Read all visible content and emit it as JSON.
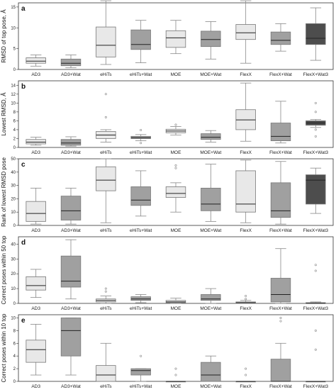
{
  "categories": [
    "AD3",
    "AD3+Wat",
    "eHiTs",
    "eHiTs+Wat",
    "MOE",
    "MOE+Wat",
    "FlexX",
    "FlexX+Wat",
    "FlexX+Wat3"
  ],
  "colors": [
    "#e8e8e8",
    "#a0a0a0",
    "#e8e8e8",
    "#a0a0a0",
    "#e8e8e8",
    "#a0a0a0",
    "#e8e8e8",
    "#a0a0a0",
    "#4d4d4d"
  ],
  "chart_data": [
    {
      "type": "box",
      "panel_label": "a",
      "ylabel": "RMSD of top pose, Å",
      "ylim": [
        0,
        16
      ],
      "yticks": [
        0,
        5,
        10,
        15
      ],
      "categories": [
        "AD3",
        "AD3+Wat",
        "eHiTs",
        "eHiTs+Wat",
        "MOE",
        "MOE+Wat",
        "FlexX",
        "FlexX+Wat",
        "FlexX+Wat3"
      ],
      "boxes": [
        {
          "whisker_low": 0.8,
          "q1": 1.5,
          "median": 2.0,
          "q3": 2.8,
          "whisker_high": 3.5,
          "outliers": []
        },
        {
          "whisker_low": 0.4,
          "q1": 0.9,
          "median": 1.5,
          "q3": 2.5,
          "whisker_high": 3.5,
          "outliers": []
        },
        {
          "whisker_low": 1.2,
          "q1": 3.0,
          "median": 5.8,
          "q3": 10.2,
          "whisker_high": 16.5,
          "outliers": []
        },
        {
          "whisker_low": 1.6,
          "q1": 4.8,
          "median": 6.0,
          "q3": 9.5,
          "whisker_high": 11.8,
          "outliers": []
        },
        {
          "whisker_low": 3.8,
          "q1": 5.3,
          "median": 7.6,
          "q3": 9.3,
          "whisker_high": 11.8,
          "outliers": []
        },
        {
          "whisker_low": 2.5,
          "q1": 5.5,
          "median": 7.2,
          "q3": 9.2,
          "whisker_high": 11.5,
          "outliers": []
        },
        {
          "whisker_low": 1.5,
          "q1": 7.2,
          "median": 8.8,
          "q3": 10.8,
          "whisker_high": 16.5,
          "outliers": []
        },
        {
          "whisker_low": 4.4,
          "q1": 6.0,
          "median": 7.0,
          "q3": 9.0,
          "whisker_high": 11.0,
          "outliers": []
        },
        {
          "whisker_low": 2.2,
          "q1": 6.0,
          "median": 7.5,
          "q3": 11.0,
          "whisker_high": 14.8,
          "outliers": []
        }
      ]
    },
    {
      "type": "box",
      "panel_label": "b",
      "ylabel": "Lowest RMSD, Å",
      "ylim": [
        0,
        15
      ],
      "yticks": [
        0,
        2,
        4,
        6,
        8,
        10,
        12,
        14
      ],
      "categories": [
        "AD3",
        "AD3+Wat",
        "eHiTs",
        "eHiTs+Wat",
        "MOE",
        "MOE+Wat",
        "FlexX",
        "FlexX+Wat",
        "FlexX+Wat3"
      ],
      "boxes": [
        {
          "whisker_low": 0.5,
          "q1": 0.8,
          "median": 1.2,
          "q3": 1.8,
          "whisker_high": 2.3,
          "outliers": []
        },
        {
          "whisker_low": 0.3,
          "q1": 0.5,
          "median": 1.0,
          "q3": 1.8,
          "whisker_high": 2.4,
          "outliers": []
        },
        {
          "whisker_low": 1.2,
          "q1": 2.0,
          "median": 2.8,
          "q3": 3.6,
          "whisker_high": 4.0,
          "outliers": [
            6.8,
            12.0
          ]
        },
        {
          "whisker_low": 1.5,
          "q1": 2.0,
          "median": 2.2,
          "q3": 2.5,
          "whisker_high": 2.9,
          "outliers": [
            1.0,
            3.9
          ]
        },
        {
          "whisker_low": 2.8,
          "q1": 3.3,
          "median": 3.7,
          "q3": 4.1,
          "whisker_high": 4.7,
          "outliers": [
            5.1
          ]
        },
        {
          "whisker_low": 1.2,
          "q1": 1.8,
          "median": 2.3,
          "q3": 3.1,
          "whisker_high": 3.8,
          "outliers": []
        },
        {
          "whisker_low": 1.4,
          "q1": 4.0,
          "median": 6.2,
          "q3": 8.5,
          "whisker_high": 14.5,
          "outliers": []
        },
        {
          "whisker_low": 1.0,
          "q1": 1.5,
          "median": 2.5,
          "q3": 5.5,
          "whisker_high": 10.4,
          "outliers": []
        },
        {
          "whisker_low": 4.5,
          "q1": 5.0,
          "median": 5.5,
          "q3": 6.0,
          "whisker_high": 6.3,
          "outliers": [
            2.5,
            8.0,
            10.0,
            4.0
          ]
        }
      ]
    },
    {
      "type": "box",
      "panel_label": "c",
      "ylabel": "Rank of lowest RMSD pose",
      "ylim": [
        0,
        50
      ],
      "yticks": [
        0,
        10,
        20,
        30,
        40,
        50
      ],
      "categories": [
        "AD3",
        "AD3+Wat",
        "eHiTs",
        "eHiTs+Wat",
        "MOE",
        "MOE+Wat",
        "FlexX",
        "FlexX+Wat",
        "FlexX+Wat3"
      ],
      "boxes": [
        {
          "whisker_low": 1,
          "q1": 3,
          "median": 9,
          "q3": 18,
          "whisker_high": 28,
          "outliers": []
        },
        {
          "whisker_low": 1,
          "q1": 4,
          "median": 11,
          "q3": 22,
          "whisker_high": 28,
          "outliers": []
        },
        {
          "whisker_low": 2,
          "q1": 26,
          "median": 34,
          "q3": 44,
          "whisker_high": 50,
          "outliers": []
        },
        {
          "whisker_low": 7,
          "q1": 15,
          "median": 19,
          "q3": 29,
          "whisker_high": 41,
          "outliers": []
        },
        {
          "whisker_low": 10,
          "q1": 21,
          "median": 24,
          "q3": 29,
          "whisker_high": 32,
          "outliers": [
            43,
            45
          ]
        },
        {
          "whisker_low": 3,
          "q1": 11,
          "median": 16,
          "q3": 28,
          "whisker_high": 46,
          "outliers": []
        },
        {
          "whisker_low": 2,
          "q1": 10,
          "median": 16,
          "q3": 41,
          "whisker_high": 49,
          "outliers": []
        },
        {
          "whisker_low": 1,
          "q1": 6,
          "median": 11,
          "q3": 32,
          "whisker_high": 48,
          "outliers": []
        },
        {
          "whisker_low": 9,
          "q1": 16,
          "median": 34,
          "q3": 38,
          "whisker_high": 43,
          "outliers": []
        }
      ]
    },
    {
      "type": "box",
      "panel_label": "d",
      "ylabel": "Correct poses within 50 top",
      "ylim": [
        0,
        45
      ],
      "yticks": [
        0,
        10,
        20,
        30,
        40
      ],
      "categories": [
        "AD3",
        "AD3+Wat",
        "eHiTs",
        "eHiTs+Wat",
        "MOE",
        "MOE+Wat",
        "FlexX",
        "FlexX+Wat",
        "FlexX+Wat3"
      ],
      "boxes": [
        {
          "whisker_low": 4,
          "q1": 9,
          "median": 12,
          "q3": 18,
          "whisker_high": 23,
          "outliers": []
        },
        {
          "whisker_low": 3,
          "q1": 11,
          "median": 15,
          "q3": 32,
          "whisker_high": 43,
          "outliers": []
        },
        {
          "whisker_low": 0,
          "q1": 1,
          "median": 2,
          "q3": 3,
          "whisker_high": 5,
          "outliers": [
            8,
            10
          ]
        },
        {
          "whisker_low": 0.5,
          "q1": 2,
          "median": 3,
          "q3": 4.5,
          "whisker_high": 6,
          "outliers": []
        },
        {
          "whisker_low": 0,
          "q1": 0.5,
          "median": 1,
          "q3": 2,
          "whisker_high": 3.5,
          "outliers": []
        },
        {
          "whisker_low": 0,
          "q1": 2,
          "median": 3,
          "q3": 6,
          "whisker_high": 10,
          "outliers": []
        },
        {
          "whisker_low": 0,
          "q1": 0,
          "median": 0.5,
          "q3": 1,
          "whisker_high": 2,
          "outliers": [
            3,
            5
          ]
        },
        {
          "whisker_low": 0,
          "q1": 1,
          "median": 6,
          "q3": 17,
          "whisker_high": 37,
          "outliers": []
        },
        {
          "whisker_low": 0,
          "q1": 0,
          "median": 0,
          "q3": 0.5,
          "whisker_high": 1,
          "outliers": [
            22,
            26
          ]
        }
      ]
    },
    {
      "type": "box",
      "panel_label": "e",
      "ylabel": "Correct poses within 10 top",
      "ylim": [
        0,
        10.5
      ],
      "yticks": [
        0,
        2,
        4,
        6,
        8,
        10
      ],
      "categories": [
        "AD3",
        "AD3+Wat",
        "eHiTs",
        "eHiTs+Wat",
        "MOE",
        "MOE+Wat",
        "FlexX",
        "FlexX+Wat",
        "FlexX+Wat3"
      ],
      "boxes": [
        {
          "whisker_low": 1,
          "q1": 3,
          "median": 5,
          "q3": 6.5,
          "whisker_high": 9,
          "outliers": []
        },
        {
          "whisker_low": 1,
          "q1": 4,
          "median": 8,
          "q3": 10,
          "whisker_high": 10,
          "outliers": []
        },
        {
          "whisker_low": 0,
          "q1": 0,
          "median": 1,
          "q3": 2.5,
          "whisker_high": 6,
          "outliers": []
        },
        {
          "whisker_low": 0,
          "q1": 1,
          "median": 1.7,
          "q3": 2,
          "whisker_high": 2,
          "outliers": [
            4
          ]
        },
        {
          "whisker_low": 0,
          "q1": 0,
          "median": 0,
          "q3": 0,
          "whisker_high": 0,
          "outliers": [
            1,
            2
          ]
        },
        {
          "whisker_low": 0,
          "q1": 0,
          "median": 1,
          "q3": 3,
          "whisker_high": 4,
          "outliers": []
        },
        {
          "whisker_low": 0,
          "q1": 0,
          "median": 0,
          "q3": 0,
          "whisker_high": 0,
          "outliers": [
            1,
            2
          ]
        },
        {
          "whisker_low": 0,
          "q1": 0,
          "median": 0,
          "q3": 3.5,
          "whisker_high": 6,
          "outliers": [
            10,
            9.5
          ]
        },
        {
          "whisker_low": 0,
          "q1": 0,
          "median": 0,
          "q3": 0,
          "whisker_high": 0,
          "outliers": [
            5,
            8
          ]
        }
      ]
    }
  ]
}
